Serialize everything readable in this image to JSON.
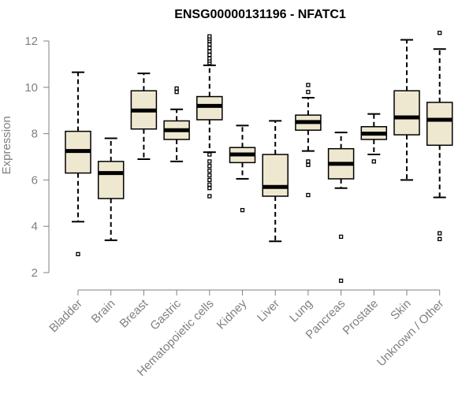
{
  "chart_data": {
    "type": "boxplot",
    "title": "ENSG00000131196 - NFATC1",
    "xlabel": "",
    "ylabel": "Expression",
    "ylim": [
      1.5,
      12.5
    ],
    "yticks": [
      2,
      4,
      6,
      8,
      10,
      12
    ],
    "box_color": "#efe8d0",
    "median_color": "#000000",
    "outline_color": "#000000",
    "axis_color": "#808080",
    "categories": [
      "Bladder",
      "Brain",
      "Breast",
      "Gastric",
      "Hematopoietic cells",
      "Kidney",
      "Liver",
      "Lung",
      "Pancreas",
      "Prostate",
      "Skin",
      "Unknown / Other"
    ],
    "boxes": [
      {
        "category": "Bladder",
        "whisker_low": 4.2,
        "q1": 6.3,
        "median": 7.25,
        "q3": 8.1,
        "whisker_high": 10.65,
        "outliers": [
          2.8
        ]
      },
      {
        "category": "Brain",
        "whisker_low": 3.4,
        "q1": 5.2,
        "median": 6.3,
        "q3": 6.8,
        "whisker_high": 7.8,
        "outliers": []
      },
      {
        "category": "Breast",
        "whisker_low": 6.9,
        "q1": 8.2,
        "median": 9.0,
        "q3": 9.85,
        "whisker_high": 10.6,
        "outliers": []
      },
      {
        "category": "Gastric",
        "whisker_low": 6.8,
        "q1": 7.75,
        "median": 8.15,
        "q3": 8.55,
        "whisker_high": 9.05,
        "outliers": [
          9.8,
          9.95
        ]
      },
      {
        "category": "Hematopoietic cells",
        "whisker_low": 7.2,
        "q1": 8.6,
        "median": 9.2,
        "q3": 9.6,
        "whisker_high": 10.95,
        "outliers": [
          11.05,
          11.15,
          11.25,
          11.4,
          11.55,
          11.7,
          11.85,
          12.0,
          12.1,
          12.2,
          7.1,
          6.8,
          6.6,
          6.4,
          6.2,
          6.0,
          5.8,
          5.65,
          5.3
        ]
      },
      {
        "category": "Kidney",
        "whisker_low": 6.05,
        "q1": 6.75,
        "median": 7.1,
        "q3": 7.4,
        "whisker_high": 8.35,
        "outliers": [
          4.7
        ]
      },
      {
        "category": "Liver",
        "whisker_low": 3.35,
        "q1": 5.3,
        "median": 5.7,
        "q3": 7.1,
        "whisker_high": 8.55,
        "outliers": []
      },
      {
        "category": "Lung",
        "whisker_low": 7.25,
        "q1": 8.15,
        "median": 8.5,
        "q3": 8.8,
        "whisker_high": 9.55,
        "outliers": [
          9.8,
          10.1,
          6.8,
          6.65,
          5.35
        ]
      },
      {
        "category": "Pancreas",
        "whisker_low": 5.65,
        "q1": 6.05,
        "median": 6.7,
        "q3": 7.35,
        "whisker_high": 8.05,
        "outliers": [
          3.55,
          1.65
        ]
      },
      {
        "category": "Prostate",
        "whisker_low": 7.1,
        "q1": 7.75,
        "median": 8.0,
        "q3": 8.3,
        "whisker_high": 8.85,
        "outliers": [
          6.8
        ]
      },
      {
        "category": "Skin",
        "whisker_low": 6.0,
        "q1": 7.95,
        "median": 8.7,
        "q3": 9.85,
        "whisker_high": 12.05,
        "outliers": []
      },
      {
        "category": "Unknown / Other",
        "whisker_low": 5.25,
        "q1": 7.5,
        "median": 8.6,
        "q3": 9.35,
        "whisker_high": 11.65,
        "outliers": [
          12.35,
          3.7,
          3.45
        ]
      }
    ]
  }
}
